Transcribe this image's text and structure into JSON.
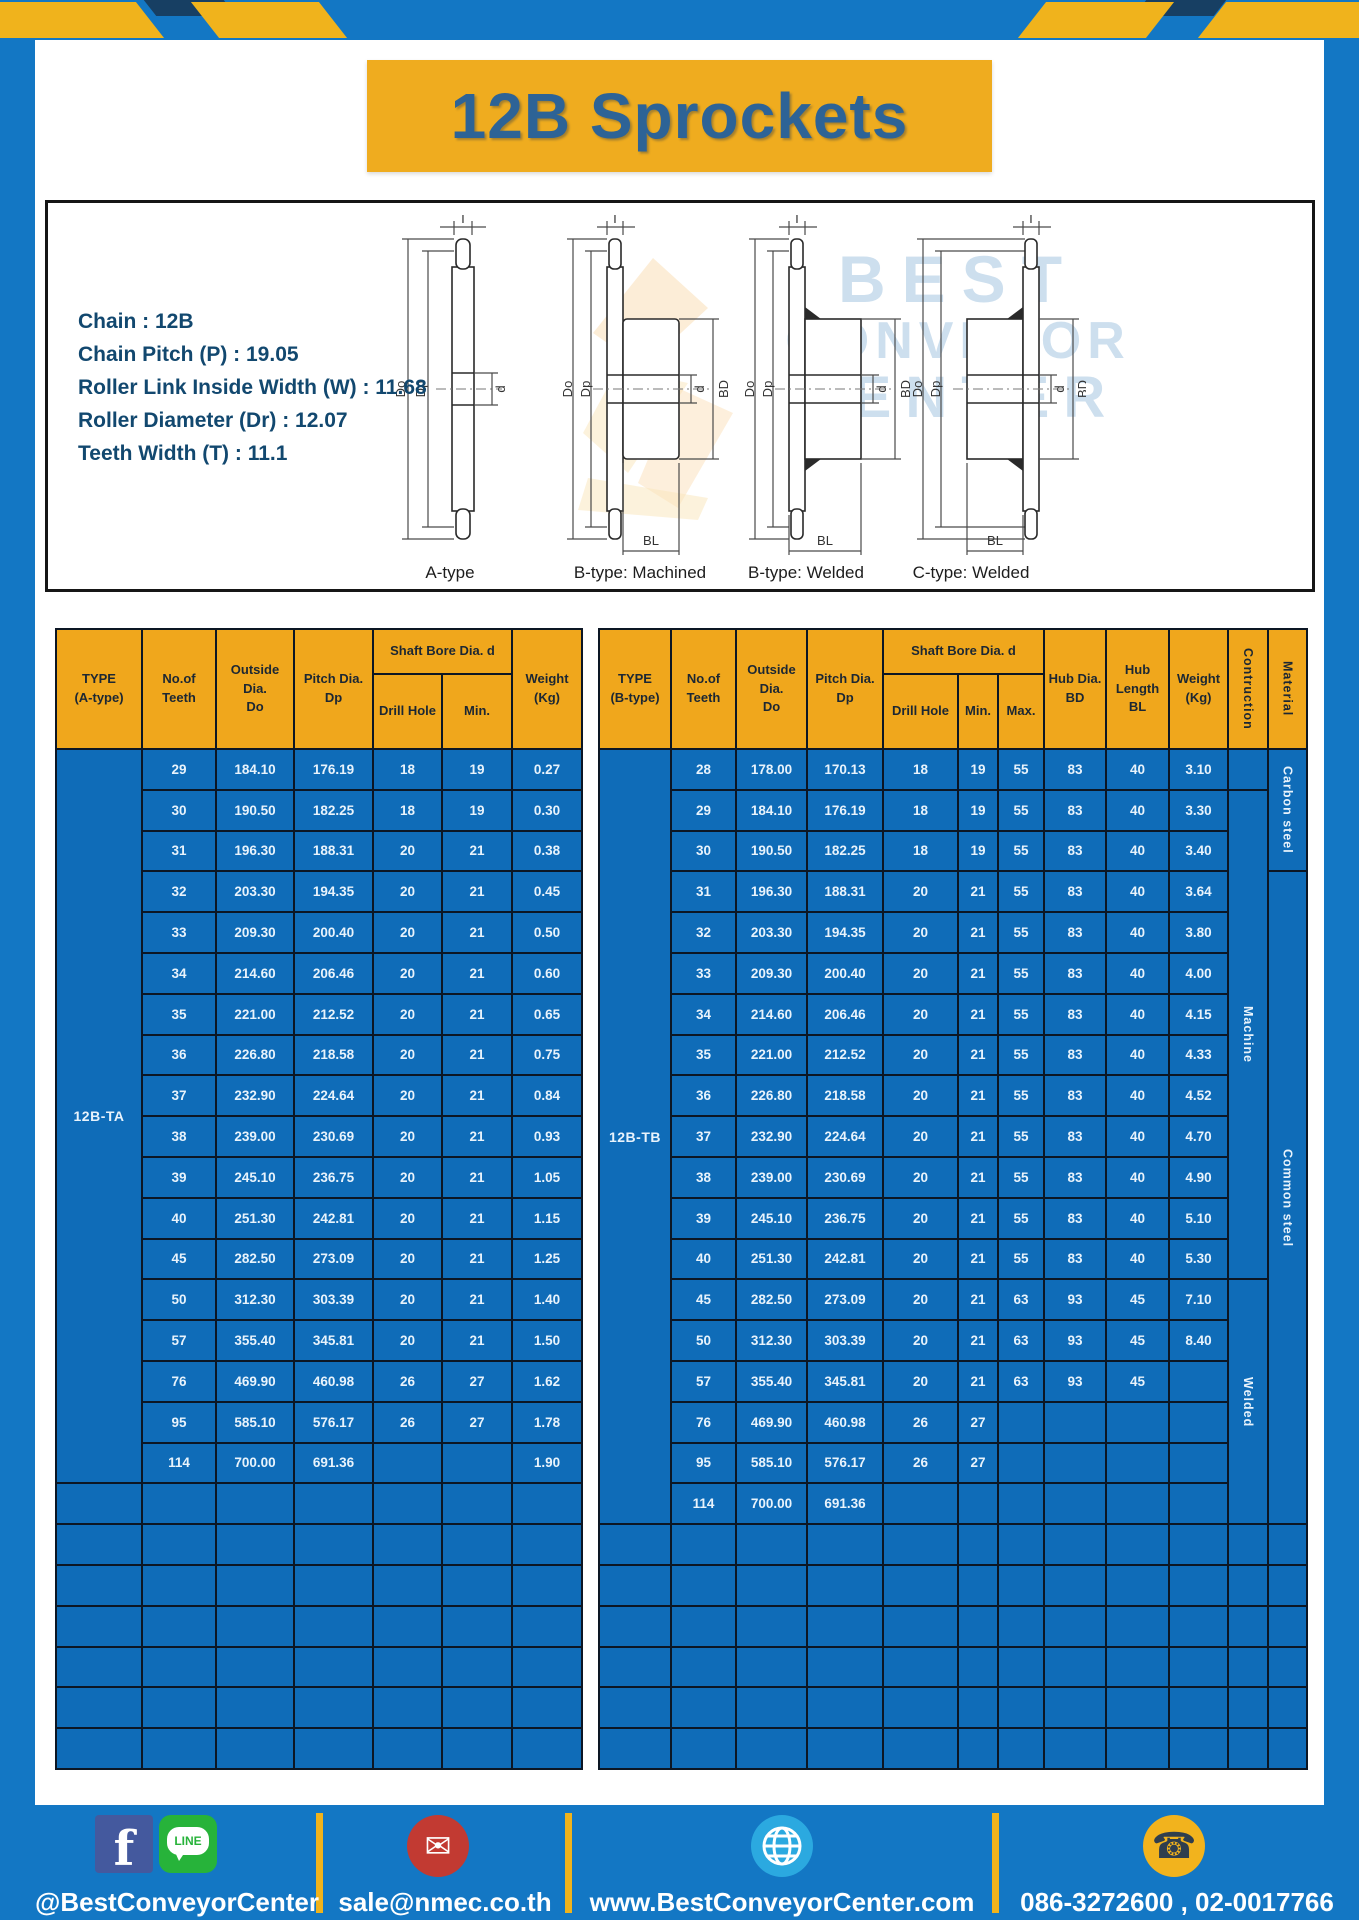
{
  "page_title": "12B Sprockets",
  "specs": {
    "lines": [
      "Chain  :  12B",
      "Chain Pitch (P)  :  19.05",
      "Roller Link Inside Width (W) : 11.68",
      "Roller Diameter (Dr)  : 12.07",
      "Teeth Width (T)  :  11.1"
    ]
  },
  "diagram": {
    "labels": [
      "A-type",
      "B-type: Machined",
      "B-type: Welded",
      "C-type: Welded"
    ],
    "dims": {
      "T": "T",
      "Do": "Do",
      "Dp": "Dp",
      "d": "d",
      "BD": "BD",
      "BL": "BL"
    },
    "watermark": {
      "line1": "BEST",
      "line2": "CONVEYOR",
      "line3": "CENTER"
    }
  },
  "table_a": {
    "headers": {
      "type": "TYPE\n(A-type)",
      "teeth": "No.of\nTeeth",
      "outside_dia": "Outside\nDia.\nDo",
      "pitch_dia": "Pitch Dia.\nDp",
      "shaft_bore": "Shaft Bore Dia. d",
      "drill_hole": "Drill Hole",
      "min": "Min.",
      "weight": "Weight\n(Kg)"
    },
    "type_label": "12B-TA",
    "rows": [
      [
        "29",
        "184.10",
        "176.19",
        "18",
        "19",
        "0.27"
      ],
      [
        "30",
        "190.50",
        "182.25",
        "18",
        "19",
        "0.30"
      ],
      [
        "31",
        "196.30",
        "188.31",
        "20",
        "21",
        "0.38"
      ],
      [
        "32",
        "203.30",
        "194.35",
        "20",
        "21",
        "0.45"
      ],
      [
        "33",
        "209.30",
        "200.40",
        "20",
        "21",
        "0.50"
      ],
      [
        "34",
        "214.60",
        "206.46",
        "20",
        "21",
        "0.60"
      ],
      [
        "35",
        "221.00",
        "212.52",
        "20",
        "21",
        "0.65"
      ],
      [
        "36",
        "226.80",
        "218.58",
        "20",
        "21",
        "0.75"
      ],
      [
        "37",
        "232.90",
        "224.64",
        "20",
        "21",
        "0.84"
      ],
      [
        "38",
        "239.00",
        "230.69",
        "20",
        "21",
        "0.93"
      ],
      [
        "39",
        "245.10",
        "236.75",
        "20",
        "21",
        "1.05"
      ],
      [
        "40",
        "251.30",
        "242.81",
        "20",
        "21",
        "1.15"
      ],
      [
        "45",
        "282.50",
        "273.09",
        "20",
        "21",
        "1.25"
      ],
      [
        "50",
        "312.30",
        "303.39",
        "20",
        "21",
        "1.40"
      ],
      [
        "57",
        "355.40",
        "345.81",
        "20",
        "21",
        "1.50"
      ],
      [
        "76",
        "469.90",
        "460.98",
        "26",
        "27",
        "1.62"
      ],
      [
        "95",
        "585.10",
        "576.17",
        "26",
        "27",
        "1.78"
      ],
      [
        "114",
        "700.00",
        "691.36",
        "",
        "",
        "1.90"
      ]
    ],
    "empty_rows": 7,
    "empty_cols": 7
  },
  "table_b": {
    "headers": {
      "type": "TYPE\n(B-type)",
      "teeth": "No.of\nTeeth",
      "outside_dia": "Outside\nDia.\nDo",
      "pitch_dia": "Pitch Dia.\nDp",
      "shaft_bore": "Shaft Bore Dia. d",
      "drill_hole": "Drill Hole",
      "min": "Min.",
      "max": "Max.",
      "hub_dia": "Hub Dia.\nBD",
      "hub_length": "Hub\nLength\nBL",
      "weight": "Weight\n(Kg)",
      "construction": "Contruction",
      "material": "Material"
    },
    "type_label": "12B-TB",
    "rows": [
      [
        "28",
        "178.00",
        "170.13",
        "18",
        "19",
        "55",
        "83",
        "40",
        "3.10"
      ],
      [
        "29",
        "184.10",
        "176.19",
        "18",
        "19",
        "55",
        "83",
        "40",
        "3.30"
      ],
      [
        "30",
        "190.50",
        "182.25",
        "18",
        "19",
        "55",
        "83",
        "40",
        "3.40"
      ],
      [
        "31",
        "196.30",
        "188.31",
        "20",
        "21",
        "55",
        "83",
        "40",
        "3.64"
      ],
      [
        "32",
        "203.30",
        "194.35",
        "20",
        "21",
        "55",
        "83",
        "40",
        "3.80"
      ],
      [
        "33",
        "209.30",
        "200.40",
        "20",
        "21",
        "55",
        "83",
        "40",
        "4.00"
      ],
      [
        "34",
        "214.60",
        "206.46",
        "20",
        "21",
        "55",
        "83",
        "40",
        "4.15"
      ],
      [
        "35",
        "221.00",
        "212.52",
        "20",
        "21",
        "55",
        "83",
        "40",
        "4.33"
      ],
      [
        "36",
        "226.80",
        "218.58",
        "20",
        "21",
        "55",
        "83",
        "40",
        "4.52"
      ],
      [
        "37",
        "232.90",
        "224.64",
        "20",
        "21",
        "55",
        "83",
        "40",
        "4.70"
      ],
      [
        "38",
        "239.00",
        "230.69",
        "20",
        "21",
        "55",
        "83",
        "40",
        "4.90"
      ],
      [
        "39",
        "245.10",
        "236.75",
        "20",
        "21",
        "55",
        "83",
        "40",
        "5.10"
      ],
      [
        "40",
        "251.30",
        "242.81",
        "20",
        "21",
        "55",
        "83",
        "40",
        "5.30"
      ],
      [
        "45",
        "282.50",
        "273.09",
        "20",
        "21",
        "63",
        "93",
        "45",
        "7.10"
      ],
      [
        "50",
        "312.30",
        "303.39",
        "20",
        "21",
        "63",
        "93",
        "45",
        "8.40"
      ],
      [
        "57",
        "355.40",
        "345.81",
        "20",
        "21",
        "63",
        "93",
        "45",
        ""
      ],
      [
        "76",
        "469.90",
        "460.98",
        "26",
        "27",
        "",
        "",
        "",
        ""
      ],
      [
        "95",
        "585.10",
        "576.17",
        "26",
        "27",
        "",
        "",
        "",
        ""
      ],
      [
        "114",
        "700.00",
        "691.36",
        "",
        "",
        "",
        "",
        "",
        ""
      ]
    ],
    "construction_groups": [
      {
        "label": "",
        "start": 0,
        "span": 1
      },
      {
        "label": "Machine",
        "start": 1,
        "span": 12
      },
      {
        "label": "Welded",
        "start": 13,
        "span": 6
      }
    ],
    "material_groups": [
      {
        "label": "Carbon steel",
        "start": 0,
        "span": 3
      },
      {
        "label": "Common  steel",
        "start": 3,
        "span": 16
      }
    ],
    "empty_rows": 6,
    "empty_cols": 12
  },
  "footer": {
    "social_handle": "@BestConveyorCenter",
    "email": "sale@nmec.co.th",
    "website": "www.BestConveyorCenter.com",
    "phones": "086-3272600 , 02-0017766",
    "line_label": "LINE",
    "facebook_letter": "f"
  },
  "colors": {
    "page_blue": "#1377c4",
    "cell_blue": "#0f6cb8",
    "header_yellow": "#f0a71c",
    "banner_yellow": "#efac1f",
    "stripe_yellow": "#f0b31c",
    "title_text": "#2d6396",
    "spec_text": "#12486f",
    "table_border": "#0c1624",
    "footer_red": "#c23a32",
    "footer_green": "#27b33a",
    "footer_fb_blue": "#44599e",
    "footer_globe_blue": "#2ba9e0"
  }
}
